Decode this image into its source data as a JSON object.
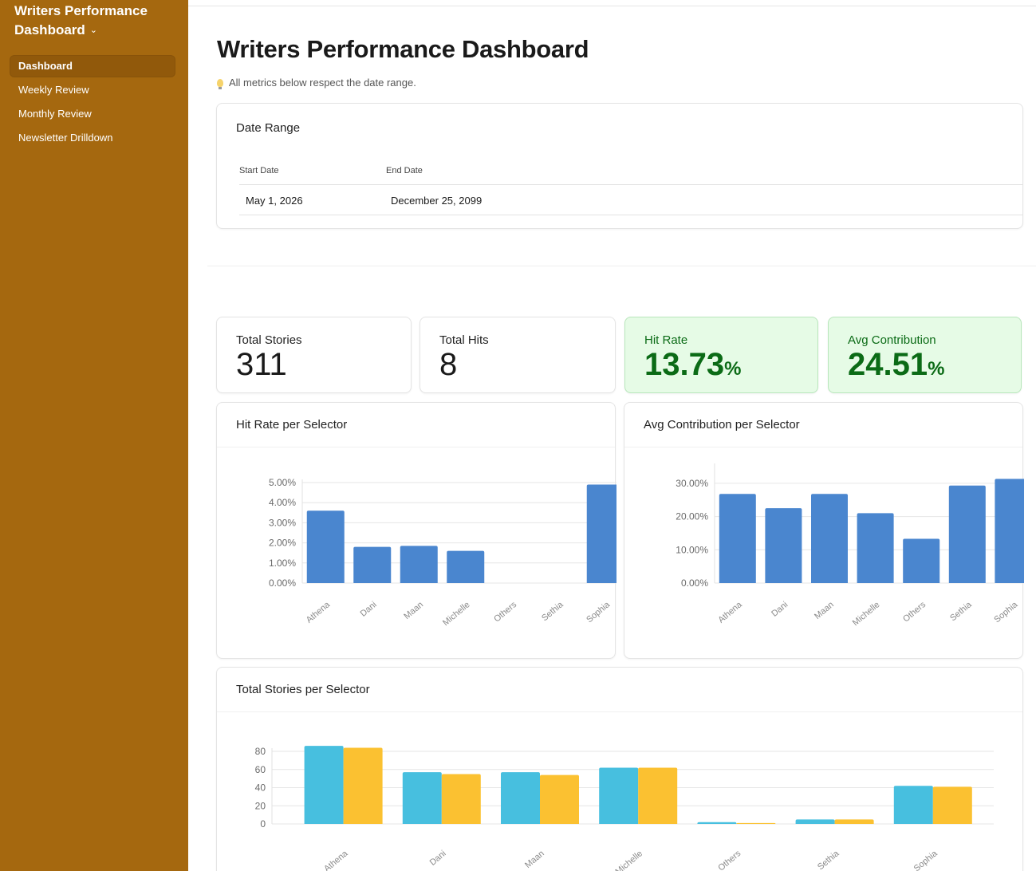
{
  "sidebar": {
    "app_title": "Writers Performance Dashboard",
    "items": [
      {
        "label": "Dashboard",
        "active": true
      },
      {
        "label": "Weekly Review",
        "active": false
      },
      {
        "label": "Monthly Review",
        "active": false
      },
      {
        "label": "Newsletter Drilldown",
        "active": false
      }
    ]
  },
  "header": {
    "title": "Writers Performance Dashboard",
    "note": "All metrics below respect the date range.",
    "note_icon": "lightbulb-icon"
  },
  "date_range": {
    "title": "Date Range",
    "start_label": "Start Date",
    "end_label": "End Date",
    "start_value": "May 1, 2026",
    "end_value": "December 25, 2099"
  },
  "kpis": {
    "total_stories": {
      "label": "Total Stories",
      "value": "311"
    },
    "total_hits": {
      "label": "Total Hits",
      "value": "8"
    },
    "hit_rate": {
      "label": "Hit Rate",
      "value": "13.73",
      "unit": "%"
    },
    "avg_contribution": {
      "label": "Avg Contribution",
      "value": "24.51",
      "unit": "%"
    }
  },
  "colors": {
    "sidebar": "#a5680f",
    "bar_blue": "#4a86cf",
    "bar_cyan": "#47bfdf",
    "bar_yellow": "#fbc131",
    "kpi_green_bg": "#e6fbe6",
    "kpi_green_text": "#0b6b16"
  },
  "chart_data": [
    {
      "type": "bar",
      "title": "Hit Rate per Selector",
      "categories": [
        "Athena",
        "Dani",
        "Maan",
        "Michelle",
        "Others",
        "Sethia",
        "Sophia"
      ],
      "values": [
        3.6,
        1.8,
        1.85,
        1.6,
        0,
        0,
        4.9
      ],
      "ylim": [
        0,
        5
      ],
      "yticks": [
        0,
        1,
        2,
        3,
        4,
        5
      ],
      "ytick_labels": [
        "0.00%",
        "1.00%",
        "2.00%",
        "3.00%",
        "4.00%",
        "5.00%"
      ],
      "grid": true
    },
    {
      "type": "bar",
      "title": "Avg Contribution per Selector",
      "categories": [
        "Athena",
        "Dani",
        "Maan",
        "Michelle",
        "Others",
        "Sethia",
        "Sophia"
      ],
      "values": [
        26.8,
        22.5,
        26.8,
        21,
        13.3,
        29.3,
        31.3
      ],
      "ylim": [
        0,
        35
      ],
      "yticks": [
        0,
        10,
        20,
        30
      ],
      "ytick_labels": [
        "0.00%",
        "10.00%",
        "20.00%",
        "30.00%"
      ],
      "grid": true
    },
    {
      "type": "bar",
      "title": "Total Stories per Selector",
      "categories": [
        "Athena",
        "Dani",
        "Maan",
        "Michelle",
        "Others",
        "Sethia",
        "Sophia"
      ],
      "series": [
        {
          "values": [
            86,
            57,
            57,
            62,
            2,
            5,
            42
          ]
        },
        {
          "values": [
            84,
            55,
            54,
            62,
            1,
            5,
            41
          ]
        }
      ],
      "ylim": [
        0,
        80
      ],
      "yticks": [
        0,
        20,
        40,
        60,
        80
      ],
      "ytick_labels": [
        "0",
        "20",
        "40",
        "60",
        "80"
      ],
      "grid": true
    }
  ]
}
